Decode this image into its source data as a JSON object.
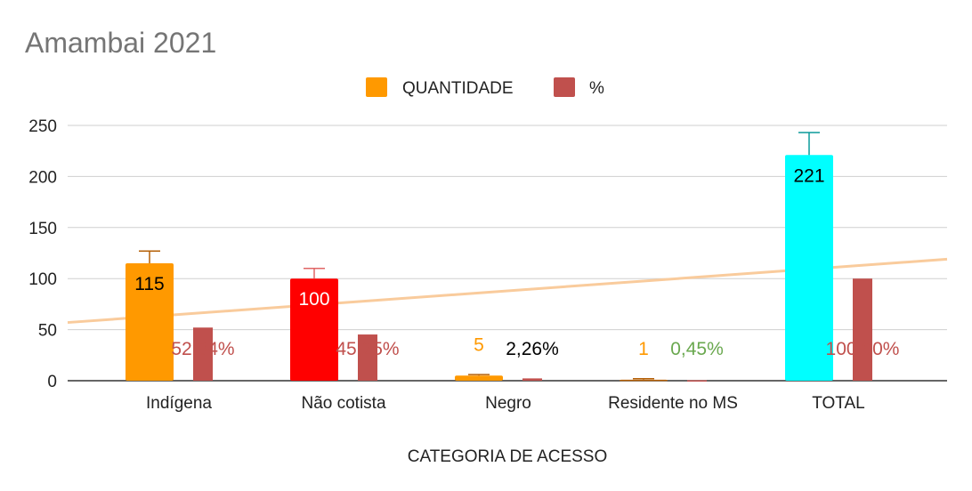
{
  "chart_data": {
    "type": "bar",
    "title": "Amambai 2021",
    "xlabel": "CATEGORIA DE ACESSO",
    "ylabel": "",
    "ylim": [
      0,
      250
    ],
    "yticks": [
      "0",
      "50",
      "100",
      "150",
      "200",
      "250"
    ],
    "ytick_values": [
      0,
      50,
      100,
      150,
      200,
      250
    ],
    "grid": true,
    "legend_position": "top",
    "categories": [
      "Indígena",
      "Não cotista",
      "Negro",
      "Residente no MS",
      "TOTAL"
    ],
    "series": [
      {
        "name": "QUANTIDADE",
        "legend_color": "#ff9900",
        "values": [
          115,
          100,
          5,
          1,
          221
        ],
        "labels": [
          "115",
          "100",
          "5",
          "1",
          "221"
        ],
        "bar_colors": [
          "#ff9900",
          "#ff0000",
          "#ff9900",
          "#b45f06",
          "#00ffff"
        ],
        "label_colors": [
          "#000000",
          "#ffffff",
          "#ff9900",
          "#ff9900",
          "#000000"
        ],
        "error_bar_upper": [
          127,
          110,
          6,
          2,
          243
        ],
        "error_bar_colors": [
          "#b45f06",
          "#e06666",
          "#b45f06",
          "#b45f06",
          "#0b9a9a"
        ]
      },
      {
        "name": "%",
        "legend_color": "#c0504d",
        "values": [
          52.04,
          45.25,
          2.26,
          0.45,
          100.0
        ],
        "labels": [
          "52,04%",
          "45,25%",
          "2,26%",
          "0,45%",
          "100,00%"
        ],
        "bar_color": "#c0504d",
        "label_colors": [
          "#c0504d",
          "#c0504d",
          "#000000",
          "#6aa84f",
          "#c0504d"
        ]
      }
    ],
    "trendline": {
      "color": "#f9cb9c",
      "y_start": 57,
      "y_end": 119
    }
  }
}
